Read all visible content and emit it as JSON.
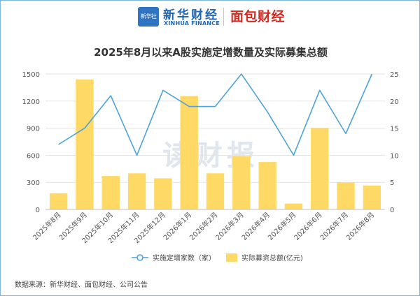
{
  "brand": {
    "logo_text": "新华社",
    "name_cn": "新华财经",
    "name_en": "XINHUA FINANCE",
    "partner": "面包财经",
    "watermark": "读财报"
  },
  "source": "数据来源：新华财经、面包财经、公司公告",
  "chart_data": {
    "type": "bar+line",
    "title": "2025年8月以来A股实施定增数量及实际募集总额",
    "categories": [
      "2025年8月",
      "2025年9月",
      "2025年10月",
      "2025年11月",
      "2025年12月",
      "2026年1月",
      "2026年2月",
      "2026年3月",
      "2026年4月",
      "2026年5月",
      "2026年6月",
      "2026年7月",
      "2026年8月"
    ],
    "left_axis": {
      "min": 0,
      "max": 1500,
      "ticks": [
        0,
        300,
        600,
        900,
        1200,
        1500
      ]
    },
    "right_axis": {
      "min": 0,
      "max": 25,
      "ticks": [
        0,
        5,
        10,
        15,
        20,
        25
      ]
    },
    "series": [
      {
        "name": "实际募资总额(亿元)",
        "type": "bar",
        "axis": "left",
        "color": "#ffd966",
        "values": [
          180,
          1440,
          370,
          400,
          345,
          1255,
          400,
          590,
          525,
          65,
          905,
          300,
          265
        ]
      },
      {
        "name": "实施定增家数（家）",
        "type": "line",
        "axis": "right",
        "color": "#4ea3d8",
        "values": [
          12,
          15,
          21,
          10,
          22,
          19,
          19,
          25,
          18,
          10,
          22,
          14,
          25
        ]
      }
    ],
    "grid": true,
    "legend": "bottom"
  }
}
